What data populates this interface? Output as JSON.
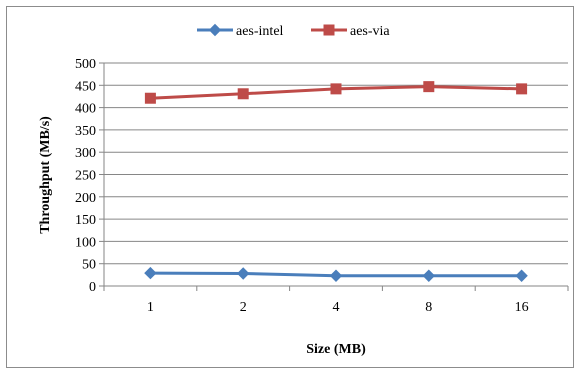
{
  "chart_data": {
    "type": "line",
    "title": "",
    "xlabel": "Size (MB)",
    "ylabel": "Throughput (MB/s)",
    "categories": [
      "1",
      "2",
      "4",
      "8",
      "16"
    ],
    "ylim": [
      0,
      500
    ],
    "yticks": [
      0,
      50,
      100,
      150,
      200,
      250,
      300,
      350,
      400,
      450,
      500
    ],
    "grid": true,
    "legend_position": "top",
    "series": [
      {
        "name": "aes-intel",
        "values": [
          29,
          28,
          23,
          23,
          23
        ],
        "color": "#4a7ebb",
        "marker": "diamond"
      },
      {
        "name": "aes-via",
        "values": [
          421,
          431,
          442,
          447,
          442
        ],
        "color": "#be4b48",
        "marker": "square"
      }
    ]
  }
}
